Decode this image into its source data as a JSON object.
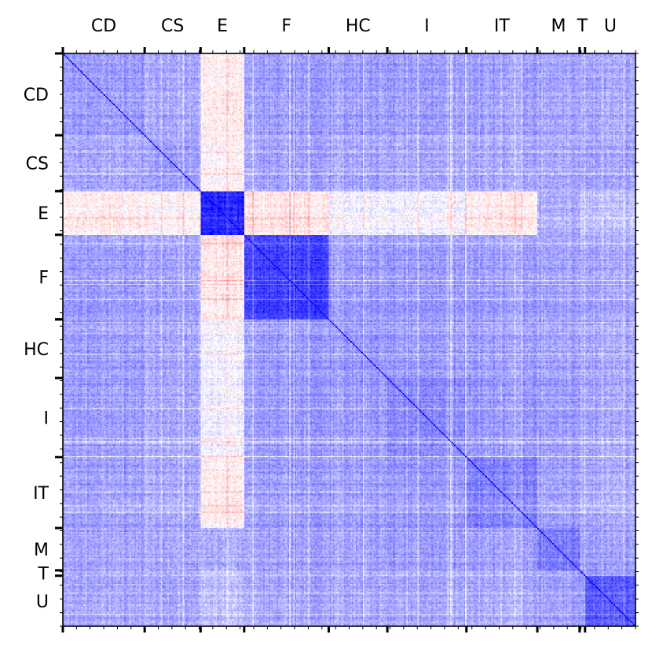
{
  "chart_data": {
    "type": "heatmap",
    "title": "",
    "xlabel": "",
    "ylabel": "",
    "x_axis_position": "top",
    "grid": false,
    "sectors": [
      {
        "label": "CD",
        "start": 0,
        "end": 60
      },
      {
        "label": "CS",
        "start": 60,
        "end": 101
      },
      {
        "label": "E",
        "start": 101,
        "end": 133
      },
      {
        "label": "F",
        "start": 133,
        "end": 195
      },
      {
        "label": "HC",
        "start": 195,
        "end": 238
      },
      {
        "label": "I",
        "start": 238,
        "end": 296
      },
      {
        "label": "IT",
        "start": 296,
        "end": 348
      },
      {
        "label": "M",
        "start": 348,
        "end": 379
      },
      {
        "label": "T",
        "start": 379,
        "end": 383
      },
      {
        "label": "U",
        "start": 383,
        "end": 420
      }
    ],
    "matrix_size": 420,
    "diagonal_value": 1.0,
    "block_values": {
      "CD": {
        "CD": 0.4,
        "CS": 0.33,
        "E": -0.06,
        "F": 0.4,
        "HC": 0.38,
        "I": 0.4,
        "IT": 0.38,
        "M": 0.36,
        "T": 0.32,
        "U": 0.35
      },
      "CS": {
        "CD": 0.33,
        "CS": 0.35,
        "E": -0.04,
        "F": 0.36,
        "HC": 0.33,
        "I": 0.34,
        "IT": 0.33,
        "M": 0.33,
        "T": 0.3,
        "U": 0.34
      },
      "E": {
        "CD": -0.06,
        "CS": -0.04,
        "E": 0.85,
        "F": -0.08,
        "HC": 0.04,
        "I": 0.06,
        "IT": -0.06,
        "M": 0.32,
        "T": 0.2,
        "U": 0.25
      },
      "F": {
        "CD": 0.4,
        "CS": 0.36,
        "E": -0.08,
        "F": 0.78,
        "HC": 0.4,
        "I": 0.42,
        "IT": 0.4,
        "M": 0.38,
        "T": 0.32,
        "U": 0.36
      },
      "HC": {
        "CD": 0.38,
        "CS": 0.33,
        "E": 0.04,
        "F": 0.4,
        "HC": 0.4,
        "I": 0.4,
        "IT": 0.38,
        "M": 0.36,
        "T": 0.3,
        "U": 0.34
      },
      "I": {
        "CD": 0.4,
        "CS": 0.34,
        "E": 0.06,
        "F": 0.42,
        "HC": 0.4,
        "I": 0.48,
        "IT": 0.42,
        "M": 0.4,
        "T": 0.32,
        "U": 0.36
      },
      "IT": {
        "CD": 0.38,
        "CS": 0.33,
        "E": -0.06,
        "F": 0.4,
        "HC": 0.38,
        "I": 0.42,
        "IT": 0.5,
        "M": 0.38,
        "T": 0.3,
        "U": 0.34
      },
      "M": {
        "CD": 0.36,
        "CS": 0.33,
        "E": 0.32,
        "F": 0.38,
        "HC": 0.36,
        "I": 0.4,
        "IT": 0.38,
        "M": 0.52,
        "T": 0.34,
        "U": 0.38
      },
      "T": {
        "CD": 0.32,
        "CS": 0.3,
        "E": 0.2,
        "F": 0.32,
        "HC": 0.3,
        "I": 0.32,
        "IT": 0.3,
        "M": 0.34,
        "T": 0.4,
        "U": 0.38
      },
      "U": {
        "CD": 0.35,
        "CS": 0.34,
        "E": 0.25,
        "F": 0.36,
        "HC": 0.34,
        "I": 0.36,
        "IT": 0.34,
        "M": 0.38,
        "T": 0.38,
        "U": 0.65
      }
    },
    "value_range": [
      -1,
      1
    ],
    "colormap": {
      "negative": "#ff0000",
      "zero": "#ffffff",
      "positive": "#0000ff"
    },
    "colorbar": false
  }
}
